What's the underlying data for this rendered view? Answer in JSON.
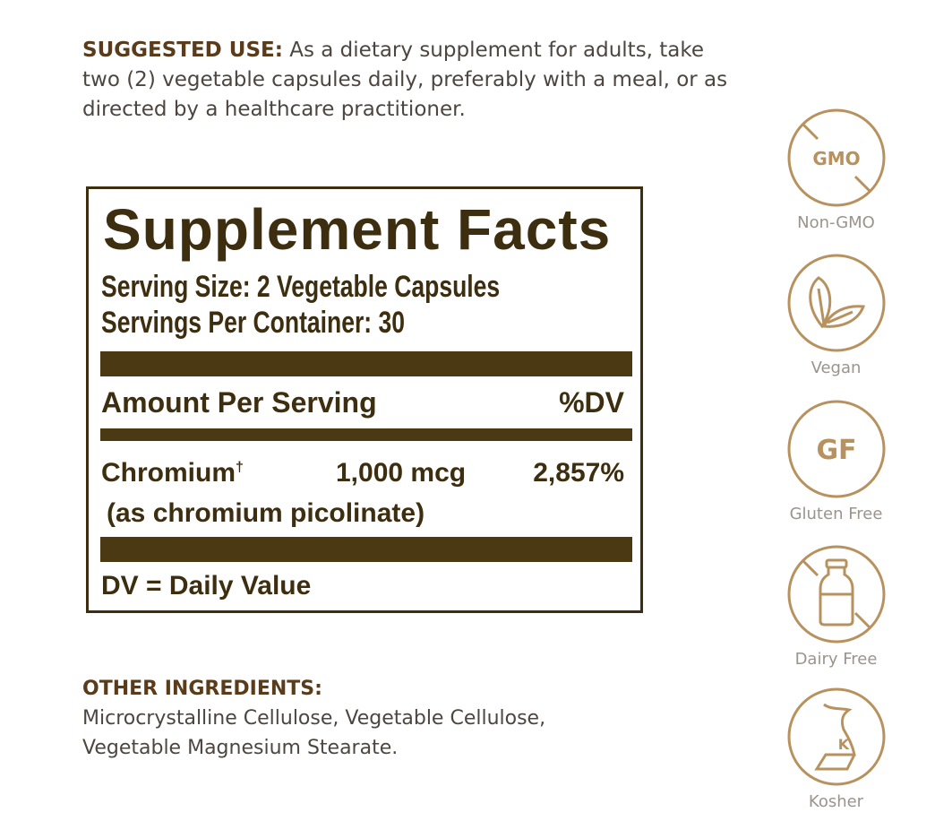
{
  "suggested_use": {
    "heading": "SUGGESTED USE:",
    "text": " As a dietary supplement for adults, take two (2) vegetable capsules daily, preferably with a meal, or as directed by a healthcare practitioner."
  },
  "facts": {
    "title": "Supplement Facts",
    "serving_size": "Serving Size: 2 Vegetable Capsules",
    "servings_per_container": "Servings Per Container: 30",
    "amount_header": "Amount Per Serving",
    "dv_header": "%DV",
    "ingredients": [
      {
        "name": "Chromium",
        "mark": "†",
        "amount": "1,000 mcg",
        "dv": "2,857%",
        "source": "(as chromium picolinate)"
      }
    ],
    "footnote": "DV = Daily Value"
  },
  "other_ingredients": {
    "heading": "OTHER INGREDIENTS:",
    "line1": "Microcrystalline Cellulose, Vegetable Cellulose,",
    "line2": "Vegetable Magnesium Stearate."
  },
  "badges": [
    {
      "icon": "non-gmo-icon",
      "text": "GMO",
      "label": "Non-GMO"
    },
    {
      "icon": "leaf-icon",
      "label": "Vegan"
    },
    {
      "icon": "gluten-free-icon",
      "text": "GF",
      "label": "Gluten Free"
    },
    {
      "icon": "milk-bottle-crossed-icon",
      "label": "Dairy Free"
    },
    {
      "icon": "kosher-icon",
      "text": "K",
      "label": "Kosher"
    }
  ],
  "colors": {
    "badge": "#b8925e",
    "label_text": "#3d2e0f",
    "heading": "#5a3b1a"
  }
}
